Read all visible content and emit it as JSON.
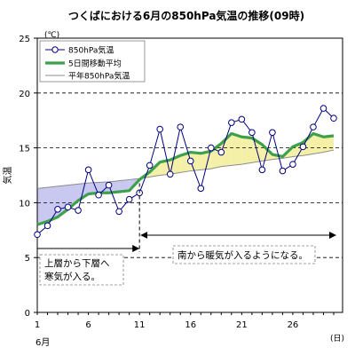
{
  "chart_data": {
    "type": "line",
    "title": "つくばにおける6月の850hPa気温の推移(09時)",
    "ylabel": "気温",
    "y_unit": "(℃)",
    "x_unit": "(日)",
    "month_label": "6月",
    "ylim": [
      0,
      25
    ],
    "xlim": [
      1,
      30
    ],
    "y_ticks": [
      0,
      5,
      10,
      15,
      20,
      25
    ],
    "x_ticks": [
      1,
      6,
      11,
      16,
      21,
      26
    ],
    "grid": "dashed horizontal at 5, 10, 15, 20",
    "legend_position": "top-left",
    "x": [
      1,
      2,
      3,
      4,
      5,
      6,
      7,
      8,
      9,
      10,
      11,
      12,
      13,
      14,
      15,
      16,
      17,
      18,
      19,
      20,
      21,
      22,
      23,
      24,
      25,
      26,
      27,
      28,
      29,
      30
    ],
    "series": [
      {
        "name": "850hPa気温",
        "style": "thin line with open circle markers",
        "color": "#000080",
        "values": [
          7.1,
          7.9,
          9.4,
          9.6,
          9.3,
          13.0,
          10.7,
          11.6,
          9.2,
          10.3,
          10.9,
          13.4,
          16.7,
          12.6,
          16.9,
          13.8,
          11.3,
          15.0,
          14.6,
          17.3,
          17.6,
          16.4,
          13.0,
          16.4,
          12.9,
          13.5,
          15.1,
          16.9,
          18.6,
          17.7
        ]
      },
      {
        "name": "5日間移動平均",
        "style": "thick line",
        "color": "#3da04a",
        "values": [
          8.0,
          8.3,
          8.7,
          9.4,
          10.2,
          10.8,
          10.9,
          10.9,
          11.0,
          11.1,
          12.1,
          12.8,
          13.7,
          13.9,
          14.3,
          14.6,
          14.5,
          14.7,
          15.4,
          16.3,
          16.0,
          15.9,
          15.3,
          14.4,
          14.2,
          15.1,
          15.5,
          16.3,
          16.0,
          16.1
        ]
      },
      {
        "name": "平年850hPa気温",
        "style": "thin line",
        "color": "#8c8c8c",
        "values": [
          11.3,
          11.4,
          11.5,
          11.6,
          11.7,
          11.8,
          11.85,
          11.9,
          12.0,
          12.1,
          12.2,
          12.35,
          12.5,
          12.6,
          12.75,
          12.9,
          13.0,
          13.1,
          13.3,
          13.4,
          13.5,
          13.65,
          13.8,
          13.95,
          14.05,
          14.2,
          14.3,
          14.45,
          14.6,
          14.8
        ]
      }
    ],
    "fill_below_normal_color": "#c8c8f0",
    "fill_above_normal_color": "#f5f0a8",
    "divider_day": 11,
    "annotations": [
      {
        "lines": [
          "上層から下層へ",
          "寒気が入る。"
        ],
        "arrow": "to the left, days 1–11"
      },
      {
        "lines": [
          "南から暖気が入るようになる。"
        ],
        "arrow": "both directions, days 11–30"
      }
    ]
  }
}
